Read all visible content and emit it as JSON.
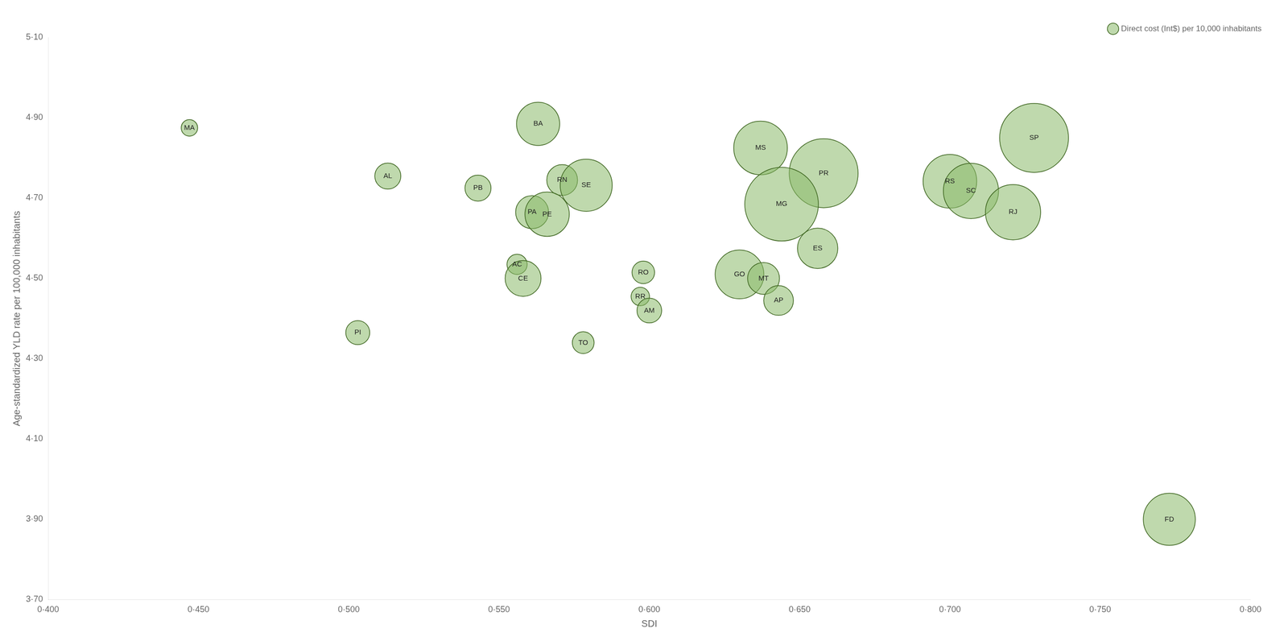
{
  "chart_data": {
    "type": "bubble",
    "xlabel": "SDI",
    "ylabel": "Age-standardized YLD rate per 100,000 inhabitants",
    "xlim": [
      0.4,
      0.8
    ],
    "ylim": [
      3.7,
      5.1
    ],
    "xticks": [
      {
        "value": 0.4,
        "label": "0·400"
      },
      {
        "value": 0.45,
        "label": "0·450"
      },
      {
        "value": 0.5,
        "label": "0·500"
      },
      {
        "value": 0.55,
        "label": "0·550"
      },
      {
        "value": 0.6,
        "label": "0·600"
      },
      {
        "value": 0.65,
        "label": "0·650"
      },
      {
        "value": 0.7,
        "label": "0·700"
      },
      {
        "value": 0.75,
        "label": "0·750"
      },
      {
        "value": 0.8,
        "label": "0·800"
      }
    ],
    "yticks": [
      {
        "value": 3.7,
        "label": "3·70"
      },
      {
        "value": 3.9,
        "label": "3·90"
      },
      {
        "value": 4.1,
        "label": "4·10"
      },
      {
        "value": 4.3,
        "label": "4·30"
      },
      {
        "value": 4.5,
        "label": "4·50"
      },
      {
        "value": 4.7,
        "label": "4·70"
      },
      {
        "value": 4.9,
        "label": "4·90"
      },
      {
        "value": 5.1,
        "label": "5·10"
      }
    ],
    "grid": false,
    "legend": "upper right",
    "series": [
      {
        "name": "Direct cost (Int$) per 10,000 inhabitants",
        "color": "#8ab96a",
        "labels": [
          "MA",
          "AL",
          "PI",
          "PB",
          "BA",
          "RN",
          "SE",
          "PA",
          "PE",
          "AC",
          "CE",
          "TO",
          "RO",
          "RR",
          "AM",
          "MS",
          "PR",
          "MG",
          "GO",
          "MT",
          "ES",
          "AP",
          "SP",
          "RS",
          "SC",
          "RJ",
          "FD"
        ],
        "x": [
          0.447,
          0.513,
          0.503,
          0.543,
          0.563,
          0.571,
          0.579,
          0.561,
          0.566,
          0.556,
          0.558,
          0.578,
          0.598,
          0.597,
          0.6,
          0.637,
          0.658,
          0.644,
          0.63,
          0.638,
          0.656,
          0.643,
          0.728,
          0.7,
          0.707,
          0.721,
          0.773
        ],
        "values": [
          4.875,
          4.755,
          4.365,
          4.725,
          4.885,
          4.745,
          4.732,
          4.665,
          4.66,
          4.535,
          4.5,
          4.34,
          4.515,
          4.455,
          4.42,
          4.825,
          4.762,
          4.685,
          4.51,
          4.5,
          4.575,
          4.445,
          4.85,
          4.742,
          4.718,
          4.665,
          3.9
        ],
        "sizes": [
          80,
          200,
          170,
          200,
          550,
          280,
          800,
          320,
          580,
          120,
          380,
          140,
          150,
          100,
          180,
          850,
          1400,
          1600,
          700,
          300,
          480,
          260,
          1400,
          850,
          900,
          900,
          800
        ]
      }
    ]
  }
}
